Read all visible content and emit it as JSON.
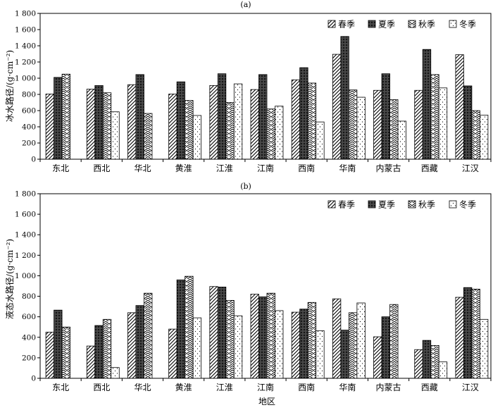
{
  "chart_data": [
    {
      "type": "bar",
      "title": "(a)",
      "ylabel": "冰水路径/(g·cm⁻²)",
      "xlabel": "",
      "ylim": [
        0,
        1800
      ],
      "yticks": [
        "0",
        "200",
        "400",
        "600",
        "800",
        "1 000",
        "1 200",
        "1 400",
        "1 600",
        "1 800"
      ],
      "grid": false,
      "legend": "top-right",
      "categories": [
        "东北",
        "西北",
        "华北",
        "黄淮",
        "江淮",
        "江南",
        "西南",
        "华南",
        "内蒙古",
        "西藏",
        "江汉"
      ],
      "series": [
        {
          "name": "春季",
          "values": [
            805,
            865,
            920,
            805,
            910,
            860,
            980,
            1295,
            850,
            850,
            1290
          ]
        },
        {
          "name": "夏季",
          "values": [
            1010,
            910,
            1045,
            955,
            1055,
            1045,
            1130,
            1515,
            1055,
            1355,
            905
          ]
        },
        {
          "name": "秋季",
          "values": [
            1050,
            820,
            565,
            725,
            700,
            620,
            940,
            855,
            735,
            1045,
            600
          ]
        },
        {
          "name": "冬季",
          "values": [
            0,
            585,
            0,
            540,
            930,
            655,
            460,
            765,
            470,
            880,
            545
          ]
        }
      ]
    },
    {
      "type": "bar",
      "title": "(b)",
      "ylabel": "液态水路径/(g·cm⁻²)",
      "xlabel": "地区",
      "ylim": [
        0,
        1800
      ],
      "yticks": [
        "0",
        "200",
        "400",
        "600",
        "800",
        "1 000",
        "1 200",
        "1 400",
        "1 600",
        "1 800"
      ],
      "grid": false,
      "legend": "top-right",
      "categories": [
        "东北",
        "西北",
        "华北",
        "黄淮",
        "江淮",
        "江南",
        "西南",
        "华南",
        "内蒙古",
        "西藏",
        "江汉"
      ],
      "series": [
        {
          "name": "春季",
          "values": [
            450,
            315,
            640,
            480,
            895,
            820,
            645,
            775,
            405,
            280,
            790
          ]
        },
        {
          "name": "夏季",
          "values": [
            665,
            515,
            710,
            960,
            890,
            795,
            675,
            470,
            600,
            370,
            885
          ]
        },
        {
          "name": "秋季",
          "values": [
            500,
            575,
            830,
            995,
            760,
            830,
            740,
            640,
            720,
            320,
            870
          ]
        },
        {
          "name": "冬季",
          "values": [
            0,
            105,
            0,
            590,
            610,
            660,
            465,
            735,
            0,
            160,
            575
          ]
        }
      ]
    }
  ],
  "colors": {
    "axis": "#000000",
    "bar_stroke": "#000000",
    "fill": "#ffffff"
  },
  "patterns": [
    "diagonal-hatch",
    "dense-crosshatch",
    "chevron-zigzag",
    "sparse-dots"
  ]
}
